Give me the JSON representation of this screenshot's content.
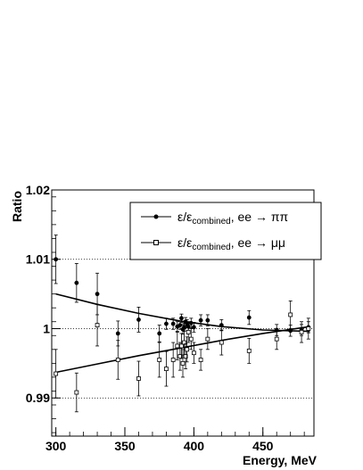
{
  "chart_data": {
    "type": "scatter",
    "xlabel": "Energy, MeV",
    "ylabel": "Ratio",
    "xlim": [
      297,
      487
    ],
    "ylim": [
      0.9845,
      1.02
    ],
    "xticks": [
      "300",
      "350",
      "400",
      "450"
    ],
    "yticks": [
      "0.99",
      "1",
      "1.01",
      "1.02"
    ],
    "grid": "dotted horizontal lines at 0.99, 1, 1.01",
    "legend_position": "top-right",
    "series": [
      {
        "name": "ε/εcombined, ee → ππ",
        "marker": "filled-circle",
        "points": [
          {
            "x": 300,
            "y": 1.01,
            "err": 0.0035
          },
          {
            "x": 315,
            "y": 1.0066,
            "err": 0.0028
          },
          {
            "x": 330,
            "y": 1.005,
            "err": 0.003
          },
          {
            "x": 345,
            "y": 0.9993,
            "err": 0.0018
          },
          {
            "x": 360,
            "y": 1.0013,
            "err": 0.0018
          },
          {
            "x": 375,
            "y": 0.9993,
            "err": 0.0012
          },
          {
            "x": 380,
            "y": 1.0007,
            "err": 0.0008
          },
          {
            "x": 385,
            "y": 1.0007,
            "err": 0.0008
          },
          {
            "x": 388,
            "y": 1.0003,
            "err": 0.0007
          },
          {
            "x": 390,
            "y": 1.0005,
            "err": 0.0006
          },
          {
            "x": 391,
            "y": 1.0015,
            "err": 0.0006
          },
          {
            "x": 392,
            "y": 0.9999,
            "err": 0.0007
          },
          {
            "x": 393,
            "y": 1.0002,
            "err": 0.0006
          },
          {
            "x": 394,
            "y": 1.001,
            "err": 0.0006
          },
          {
            "x": 395,
            "y": 1.0007,
            "err": 0.0006
          },
          {
            "x": 396,
            "y": 1.0003,
            "err": 0.0007
          },
          {
            "x": 398,
            "y": 1.0008,
            "err": 0.0007
          },
          {
            "x": 400,
            "y": 1.0002,
            "err": 0.0007
          },
          {
            "x": 405,
            "y": 1.0012,
            "err": 0.0008
          },
          {
            "x": 410,
            "y": 1.0012,
            "err": 0.0008
          },
          {
            "x": 420,
            "y": 1.0005,
            "err": 0.0008
          },
          {
            "x": 440,
            "y": 1.0016,
            "err": 0.001
          },
          {
            "x": 460,
            "y": 0.9998,
            "err": 0.0008
          },
          {
            "x": 470,
            "y": 0.9997,
            "err": 0.0008
          },
          {
            "x": 478,
            "y": 0.9998,
            "err": 0.0008
          },
          {
            "x": 483,
            "y": 1.0002,
            "err": 0.0008
          }
        ],
        "fit": [
          [
            300,
            1.005
          ],
          [
            330,
            1.0035
          ],
          [
            360,
            1.0022
          ],
          [
            390,
            1.0011
          ],
          [
            420,
            1.0003
          ],
          [
            450,
            0.9998
          ],
          [
            484,
            0.9996
          ]
        ]
      },
      {
        "name": "ε/εcombined, ee → μμ",
        "marker": "open-square",
        "points": [
          {
            "x": 300,
            "y": 0.9935,
            "err": 0.0035
          },
          {
            "x": 315,
            "y": 0.9908,
            "err": 0.0028
          },
          {
            "x": 330,
            "y": 1.0005,
            "err": 0.003
          },
          {
            "x": 345,
            "y": 0.9955,
            "err": 0.0028
          },
          {
            "x": 360,
            "y": 0.9928,
            "err": 0.0025
          },
          {
            "x": 375,
            "y": 0.9955,
            "err": 0.0025
          },
          {
            "x": 380,
            "y": 0.9942,
            "err": 0.0025
          },
          {
            "x": 385,
            "y": 0.9955,
            "err": 0.0025
          },
          {
            "x": 388,
            "y": 0.9975,
            "err": 0.002
          },
          {
            "x": 390,
            "y": 0.996,
            "err": 0.002
          },
          {
            "x": 391,
            "y": 0.9975,
            "err": 0.0018
          },
          {
            "x": 392,
            "y": 0.995,
            "err": 0.002
          },
          {
            "x": 393,
            "y": 0.998,
            "err": 0.0018
          },
          {
            "x": 394,
            "y": 0.996,
            "err": 0.0018
          },
          {
            "x": 395,
            "y": 0.997,
            "err": 0.0018
          },
          {
            "x": 396,
            "y": 0.9995,
            "err": 0.0015
          },
          {
            "x": 398,
            "y": 0.9985,
            "err": 0.0015
          },
          {
            "x": 400,
            "y": 0.9965,
            "err": 0.0015
          },
          {
            "x": 405,
            "y": 0.9955,
            "err": 0.0015
          },
          {
            "x": 410,
            "y": 0.9985,
            "err": 0.0015
          },
          {
            "x": 420,
            "y": 0.998,
            "err": 0.0018
          },
          {
            "x": 440,
            "y": 0.9968,
            "err": 0.0018
          },
          {
            "x": 460,
            "y": 0.9985,
            "err": 0.0015
          },
          {
            "x": 470,
            "y": 1.002,
            "err": 0.002
          },
          {
            "x": 478,
            "y": 0.9995,
            "err": 0.0015
          },
          {
            "x": 483,
            "y": 1.0,
            "err": 0.0015
          }
        ],
        "fit": [
          [
            300,
            0.9937
          ],
          [
            330,
            0.9949
          ],
          [
            360,
            0.9961
          ],
          [
            390,
            0.9972
          ],
          [
            420,
            0.9983
          ],
          [
            450,
            0.9993
          ],
          [
            484,
            1.0003
          ]
        ]
      }
    ]
  },
  "legend": {
    "pipi": {
      "eps": "ε/ε",
      "sub": "combined",
      "rest": ", ee → ππ"
    },
    "mumu": {
      "eps": "ε/ε",
      "sub": "combined",
      "rest": ", ee → μμ"
    }
  }
}
